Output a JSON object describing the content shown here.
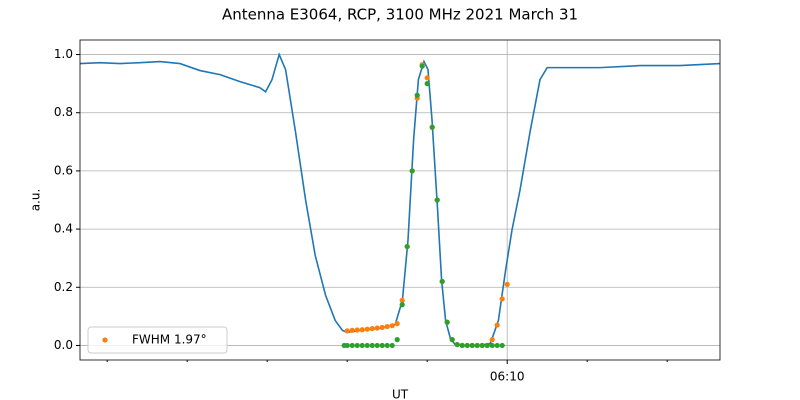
{
  "chart_data": {
    "type": "line",
    "title": "Antenna E3064, RCP, 3100 MHz 2021 March 31",
    "xlabel": "UT",
    "ylabel": "a.u.",
    "xlim": [
      4.66,
      12.66
    ],
    "ylim": [
      -0.05,
      1.05
    ],
    "xticks": [
      {
        "value": 10,
        "label": "06:10"
      }
    ],
    "xminorticks": [
      5,
      6,
      7,
      8,
      9,
      11,
      12
    ],
    "yticks": [
      {
        "value": 0,
        "label": "0.0"
      },
      0.2,
      0.4,
      0.6,
      0.8,
      {
        "value": 1,
        "label": "1.0"
      }
    ],
    "grid": true,
    "legend": "lower left",
    "series": [
      {
        "type": "line",
        "color": "#1f77b4",
        "x": [
          4.66,
          4.91,
          5.16,
          5.41,
          5.66,
          5.91,
          6.16,
          6.41,
          6.66,
          6.91,
          6.98,
          7.06,
          7.15,
          7.23,
          7.35,
          7.48,
          7.6,
          7.73,
          7.85,
          7.94,
          8.0,
          8.16,
          8.41,
          8.6,
          8.69,
          8.76,
          8.83,
          8.89,
          8.96,
          9.01,
          9.06,
          9.13,
          9.18,
          9.23,
          9.29,
          9.35,
          9.48,
          9.66,
          9.79,
          9.89,
          9.98,
          10.06,
          10.16,
          10.29,
          10.41,
          10.5,
          10.66,
          11.16,
          11.66,
          12.16,
          12.66
        ],
        "values": [
          0.969,
          0.972,
          0.969,
          0.972,
          0.976,
          0.969,
          0.945,
          0.931,
          0.907,
          0.886,
          0.872,
          0.914,
          1.0,
          0.948,
          0.741,
          0.5,
          0.31,
          0.172,
          0.086,
          0.052,
          0.045,
          0.052,
          0.059,
          0.072,
          0.155,
          0.362,
          0.707,
          0.914,
          0.976,
          0.948,
          0.776,
          0.466,
          0.224,
          0.086,
          0.024,
          0.003,
          0.0,
          0.0,
          0.007,
          0.086,
          0.259,
          0.397,
          0.534,
          0.741,
          0.914,
          0.955,
          0.955,
          0.955,
          0.962,
          0.962,
          0.969
        ]
      },
      {
        "type": "scatter",
        "name": "FWHM 1.97°",
        "color": "#ff7f0e",
        "x": [
          8.0,
          8.0625,
          8.125,
          8.1875,
          8.25,
          8.3125,
          8.375,
          8.4375,
          8.5,
          8.5625,
          8.625,
          8.6875,
          8.75,
          8.8125,
          8.875,
          8.9375,
          9.0,
          9.0625,
          9.125,
          9.1875,
          9.25,
          9.3125,
          9.375,
          9.4375,
          9.5,
          9.5625,
          9.625,
          9.6875,
          9.75,
          9.8125,
          9.875,
          9.9375,
          10.0
        ],
        "values": [
          0.05,
          0.052,
          0.053,
          0.054,
          0.056,
          0.058,
          0.06,
          0.062,
          0.065,
          0.068,
          0.075,
          0.155,
          0.34,
          0.6,
          0.85,
          0.965,
          0.92,
          0.75,
          0.5,
          0.22,
          0.08,
          0.02,
          0.003,
          0,
          0,
          0,
          0,
          0,
          0,
          0.02,
          0.07,
          0.16,
          0.21
        ]
      },
      {
        "type": "scatter",
        "color": "#2ca02c",
        "x": [
          7.9625,
          8.0,
          8.0625,
          8.125,
          8.1875,
          8.25,
          8.3125,
          8.375,
          8.4375,
          8.5,
          8.5625,
          8.625,
          8.6875,
          8.75,
          8.8125,
          8.875,
          8.9375,
          9.0,
          9.0625,
          9.125,
          9.1875,
          9.25,
          9.3125,
          9.375,
          9.4375,
          9.5,
          9.5625,
          9.625,
          9.6875,
          9.75,
          9.8125,
          9.875,
          9.9375
        ],
        "values": [
          0,
          0,
          0,
          0,
          0,
          0,
          0,
          0,
          0,
          0,
          0,
          0.02,
          0.14,
          0.34,
          0.6,
          0.86,
          0.96,
          0.9,
          0.75,
          0.5,
          0.22,
          0.08,
          0.02,
          0.003,
          0,
          0,
          0,
          0,
          0,
          0,
          0,
          0,
          0
        ]
      }
    ]
  }
}
